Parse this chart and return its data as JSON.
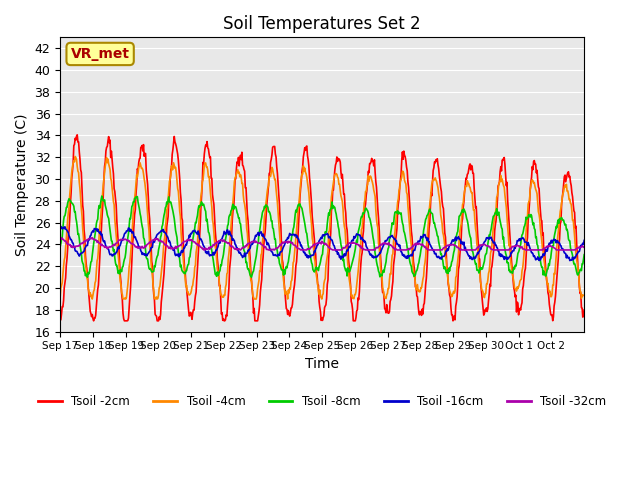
{
  "title": "Soil Temperatures Set 2",
  "xlabel": "Time",
  "ylabel": "Soil Temperature (C)",
  "ylim": [
    16,
    43
  ],
  "yticks": [
    16,
    18,
    20,
    22,
    24,
    26,
    28,
    30,
    32,
    34,
    36,
    38,
    40,
    42
  ],
  "series_colors": [
    "#ff0000",
    "#ff8800",
    "#00cc00",
    "#0000cc",
    "#aa00aa"
  ],
  "series_labels": [
    "Tsoil -2cm",
    "Tsoil -4cm",
    "Tsoil -8cm",
    "Tsoil -16cm",
    "Tsoil -32cm"
  ],
  "annotation_text": "VR_met",
  "annotation_bg": "#ffff99",
  "annotation_border": "#aa8800",
  "background_color": "#e8e8e8",
  "n_days": 16,
  "samples_per_day": 48,
  "grid_color": "#ffffff",
  "xtick_positions": [
    0,
    1,
    2,
    3,
    4,
    5,
    6,
    7,
    8,
    9,
    10,
    11,
    12,
    13,
    14,
    15
  ],
  "xtick_labels": [
    "Sep 17",
    "Sep 18",
    "Sep 19",
    "Sep 20",
    "Sep 21",
    "Sep 22",
    "Sep 23",
    "Sep 24",
    "Sep 25",
    "Sep 26",
    "Sep 27",
    "Sep 28",
    "Sep 29",
    "Sep 30",
    "Oct 1",
    "Oct 2"
  ],
  "line_width": 1.2
}
